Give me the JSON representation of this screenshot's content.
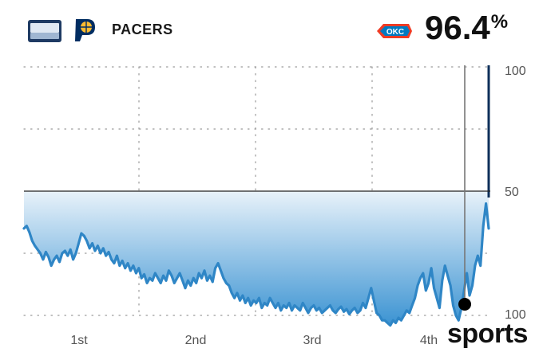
{
  "header": {
    "away_team": "PACERS",
    "win_probability": "96.4",
    "win_probability_suffix": "%",
    "home_logo_text": "OKC"
  },
  "watermark": "sports",
  "colors": {
    "line": "#2f86c6",
    "fill_top": "#e8f2fa",
    "fill_bottom": "#3b93d2",
    "home_end_line": "#0d2f5a",
    "midline": "#222222",
    "grid": "#9a9a9a"
  },
  "chart_data": {
    "type": "area",
    "xlabel": "",
    "ylabel": "",
    "x_tick_labels": [
      "1st",
      "2nd",
      "3rd",
      "4th"
    ],
    "y_tick_labels": [
      "100",
      "50",
      "100"
    ],
    "ylim": [
      100,
      -100
    ],
    "grid": true,
    "marker_text": "",
    "series": [
      {
        "values": [
          -30,
          -28,
          -33,
          -40,
          -44,
          -47,
          -50,
          -55,
          -49,
          -53,
          -60,
          -55,
          -52,
          -57,
          -50,
          -48,
          -52,
          -47,
          -55,
          -50,
          -42,
          -34,
          -36,
          -40,
          -46,
          -42,
          -48,
          -44,
          -50,
          -46,
          -52,
          -49,
          -55,
          -58,
          -52,
          -60,
          -56,
          -62,
          -58,
          -64,
          -60,
          -66,
          -62,
          -70,
          -67,
          -74,
          -70,
          -72,
          -66,
          -70,
          -74,
          -68,
          -72,
          -64,
          -68,
          -74,
          -70,
          -66,
          -72,
          -78,
          -72,
          -76,
          -70,
          -74,
          -66,
          -70,
          -64,
          -72,
          -68,
          -73,
          -62,
          -58,
          -64,
          -70,
          -74,
          -76,
          -82,
          -86,
          -82,
          -88,
          -84,
          -90,
          -86,
          -92,
          -88,
          -90,
          -86,
          -94,
          -90,
          -92,
          -86,
          -90,
          -94,
          -90,
          -96,
          -92,
          -94,
          -90,
          -96,
          -92,
          -94,
          -96,
          -90,
          -94,
          -98,
          -94,
          -92,
          -96,
          -94,
          -98,
          -96,
          -94,
          -92,
          -96,
          -98,
          -95,
          -93,
          -97,
          -95,
          -99,
          -96,
          -94,
          -98,
          -96,
          -90,
          -94,
          -86,
          -78,
          -88,
          -98,
          -100,
          -104,
          -104,
          -106,
          -108,
          -104,
          -106,
          -102,
          -104,
          -100,
          -96,
          -98,
          -92,
          -86,
          -76,
          -70,
          -66,
          -80,
          -74,
          -62,
          -78,
          -86,
          -94,
          -72,
          -60,
          -68,
          -76,
          -92,
          -100,
          -104,
          -94,
          -80,
          -66,
          -84,
          -76,
          -60,
          -52,
          -60,
          -28,
          -10,
          -30
        ]
      }
    ]
  }
}
